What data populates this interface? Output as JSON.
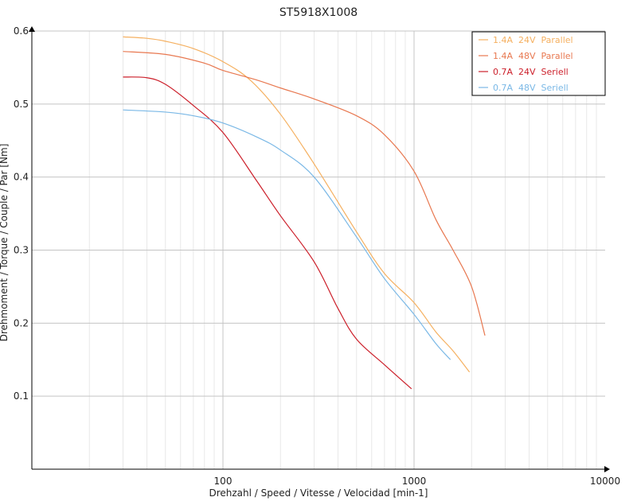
{
  "chart_data": {
    "type": "line",
    "title": "ST5918X1008",
    "xlabel": "Drehzahl / Speed / Vitesse / Velocidad [min-1]",
    "ylabel": "Drehmoment / Torque / Couple / Par [Nm]",
    "x_scale": "log",
    "xlim": [
      10,
      10000
    ],
    "ylim": [
      0,
      0.6
    ],
    "x_ticks": [
      100,
      1000,
      10000
    ],
    "x_tick_labels": [
      "100",
      "1000",
      "10000"
    ],
    "y_ticks": [
      0.1,
      0.2,
      0.3,
      0.4,
      0.5,
      0.6
    ],
    "y_tick_labels": [
      "0.1",
      "0.2",
      "0.3",
      "0.4",
      "0.5",
      "0.6"
    ],
    "grid": true,
    "legend_position": "top-right",
    "series": [
      {
        "name": "1.4A  24V  Parallel",
        "color": "#f5b060",
        "x": [
          30,
          40,
          50,
          70,
          100,
          140,
          200,
          300,
          500,
          700,
          1000,
          1300,
          1600,
          1950
        ],
        "y": [
          0.592,
          0.59,
          0.586,
          0.576,
          0.558,
          0.532,
          0.486,
          0.418,
          0.325,
          0.268,
          0.228,
          0.188,
          0.162,
          0.133
        ]
      },
      {
        "name": "1.4A  48V  Parallel",
        "color": "#e87850",
        "x": [
          30,
          50,
          80,
          100,
          150,
          200,
          300,
          500,
          700,
          1000,
          1300,
          1600,
          2000,
          2350
        ],
        "y": [
          0.572,
          0.568,
          0.556,
          0.546,
          0.533,
          0.522,
          0.507,
          0.484,
          0.458,
          0.408,
          0.342,
          0.3,
          0.25,
          0.183
        ]
      },
      {
        "name": "0.7A  24V  Seriell",
        "color": "#cc1f2a",
        "x": [
          30,
          40,
          50,
          70,
          100,
          150,
          200,
          300,
          400,
          500,
          700,
          970
        ],
        "y": [
          0.537,
          0.536,
          0.527,
          0.498,
          0.461,
          0.395,
          0.347,
          0.284,
          0.22,
          0.178,
          0.143,
          0.11
        ]
      },
      {
        "name": "0.7A  48V  Seriell",
        "color": "#7ab8e6",
        "x": [
          30,
          50,
          70,
          100,
          150,
          200,
          300,
          500,
          700,
          1000,
          1300,
          1550
        ],
        "y": [
          0.492,
          0.489,
          0.484,
          0.474,
          0.455,
          0.437,
          0.4,
          0.318,
          0.261,
          0.212,
          0.172,
          0.15
        ]
      }
    ]
  }
}
